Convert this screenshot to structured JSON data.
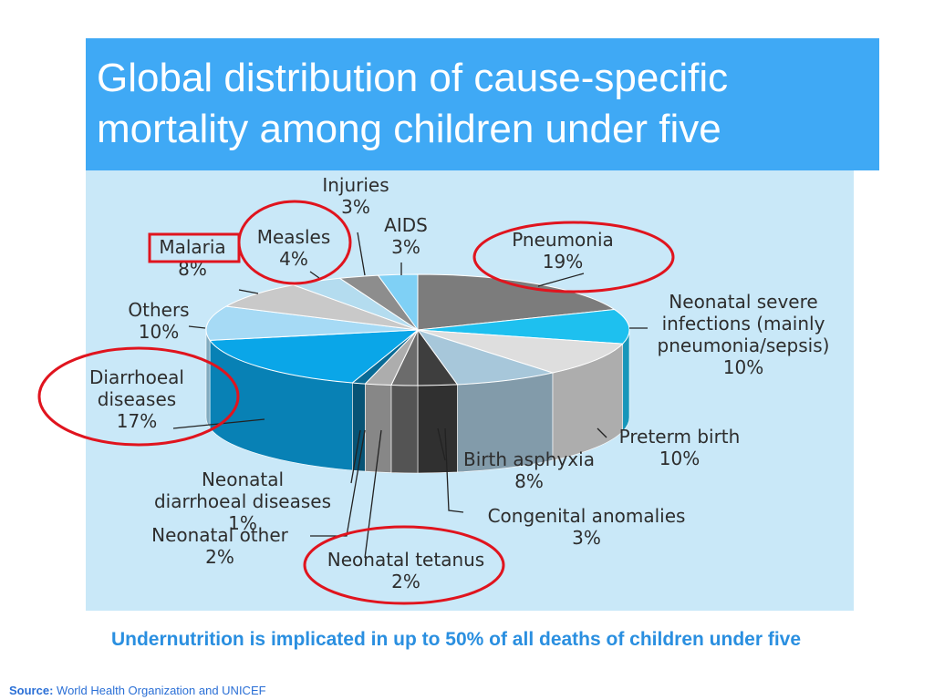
{
  "title": "Global distribution of cause-specific mortality among children under five",
  "footnote": "Undernutrition is implicated in up to 50% of all deaths of children under five",
  "source": {
    "label": "Source:",
    "text": "World Health Organization and UNICEF"
  },
  "colors": {
    "title_band": "#3fa9f5",
    "panel": "#c9e8f8",
    "highlight": "#e0141e",
    "footnote": "#2a8fe0"
  },
  "chart_data": {
    "type": "pie",
    "unit": "%",
    "slices": [
      {
        "name": "Pneumonia",
        "value": 19,
        "color": "#7c7c7c",
        "label_lines": [
          "Pneumonia",
          "19%"
        ],
        "highlight": "ellipse"
      },
      {
        "name": "Neonatal severe infections (mainly pneumonia/sepsis)",
        "value": 10,
        "color": "#1ec0ef",
        "label_lines": [
          "Neonatal severe",
          "infections (mainly",
          "pneumonia/sepsis)",
          "10%"
        ]
      },
      {
        "name": "Preterm birth",
        "value": 10,
        "color": "#dedede",
        "label_lines": [
          "Preterm birth",
          "10%"
        ]
      },
      {
        "name": "Birth asphyxia",
        "value": 8,
        "color": "#a7c7da",
        "label_lines": [
          "Birth asphyxia",
          "8%"
        ]
      },
      {
        "name": "Congenital anomalies",
        "value": 3,
        "color": "#3e3e3e",
        "label_lines": [
          "Congenital anomalies",
          "3%"
        ]
      },
      {
        "name": "Neonatal tetanus",
        "value": 2,
        "color": "#6c6c6c",
        "label_lines": [
          "Neonatal tetanus",
          "2%"
        ],
        "highlight": "ellipse"
      },
      {
        "name": "Neonatal other",
        "value": 2,
        "color": "#adadad",
        "label_lines": [
          "Neonatal other",
          "2%"
        ]
      },
      {
        "name": "Neonatal diarrhoeal diseases",
        "value": 1,
        "color": "#096b96",
        "label_lines": [
          "Neonatal",
          "diarrhoeal diseases",
          "1%"
        ]
      },
      {
        "name": "Diarrhoeal diseases",
        "value": 17,
        "color": "#0aa6e8",
        "label_lines": [
          "Diarrhoeal",
          "diseases",
          "17%"
        ],
        "highlight": "ellipse"
      },
      {
        "name": "Others",
        "value": 10,
        "color": "#a6daf5",
        "label_lines": [
          "Others",
          "10%"
        ]
      },
      {
        "name": "Malaria",
        "value": 8,
        "color": "#c9c9c9",
        "label_lines": [
          "Malaria",
          "8%"
        ],
        "highlight": "box"
      },
      {
        "name": "Measles",
        "value": 4,
        "color": "#b4dcef",
        "label_lines": [
          "Measles",
          "4%"
        ],
        "highlight": "ellipse"
      },
      {
        "name": "Injuries",
        "value": 3,
        "color": "#8d8d8d",
        "label_lines": [
          "Injuries",
          "3%"
        ]
      },
      {
        "name": "AIDS",
        "value": 3,
        "color": "#7fd0f5",
        "label_lines": [
          "AIDS",
          "3%"
        ]
      }
    ]
  }
}
